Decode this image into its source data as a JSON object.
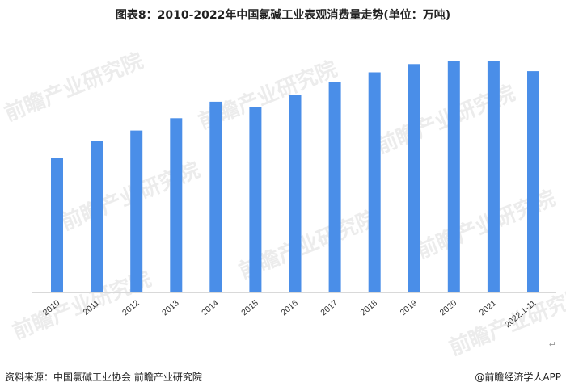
{
  "page": {
    "source": "资料来源：中国氯碱工业协会 前瞻产业研究院",
    "brand": "@前瞻经济学人APP",
    "return_mark": "↵"
  },
  "watermarks": [
    "前瞻产业研究院",
    "前瞻产业研究院",
    "前瞻产业研究院",
    "前瞻产业研究院",
    "前瞻产业研究院",
    "前瞻产业研究院",
    "前瞻产业研究院",
    "前瞻产业研究院"
  ],
  "colors": {
    "bar": "#4a8ee8",
    "axis": "#d9d9d9"
  },
  "chart_data": {
    "type": "bar",
    "title": "图表8：2010-2022年中国氯碱工业表观消费量走势(单位：万吨)",
    "categories": [
      "2010",
      "2011",
      "2012",
      "2013",
      "2014",
      "2015",
      "2016",
      "2017",
      "2018",
      "2019",
      "2020",
      "2021",
      "2022.1-11"
    ],
    "values": [
      2290,
      2570,
      2750,
      2960,
      3240,
      3150,
      3350,
      3580,
      3740,
      3880,
      3930,
      3930,
      3760
    ],
    "xlabel": "",
    "ylabel": "",
    "ylim": [
      0,
      4200
    ],
    "grid": false,
    "legend": "none"
  }
}
